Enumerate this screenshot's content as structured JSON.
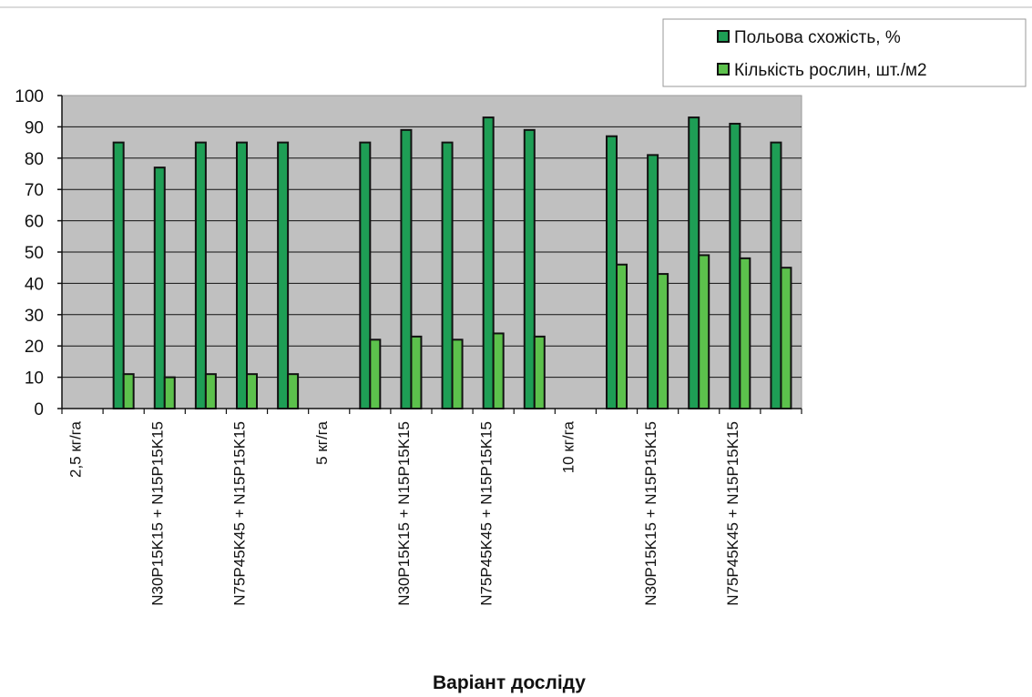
{
  "chart_data": {
    "type": "bar",
    "xlabel": "Варіант досліду",
    "ylabel": "",
    "ylim": [
      0,
      100
    ],
    "yticks": [
      0,
      10,
      20,
      30,
      40,
      50,
      60,
      70,
      80,
      90,
      100
    ],
    "grid": true,
    "legend_position": "top-right",
    "categories": [
      "2,5 кг/га",
      "",
      "N30P15K15 + N15P15K15",
      "",
      "N75P45K45 + N15P15K15",
      "",
      "5 кг/га",
      "",
      "N30P15K15 + N15P15K15",
      "",
      "N75P45K45 + N15P15K15",
      "",
      "10 кг/га",
      "",
      "N30P15K15 + N15P15K15",
      "",
      "N75P45K45 + N15P15K15",
      ""
    ],
    "series": [
      {
        "name": "Польова схожість, %",
        "color": "#1e9e55",
        "values": [
          null,
          85,
          77,
          85,
          85,
          85,
          null,
          85,
          89,
          85,
          93,
          89,
          null,
          87,
          81,
          93,
          91,
          85
        ]
      },
      {
        "name": "Кількість рослин, шт./м2",
        "color": "#5cc14c",
        "values": [
          null,
          11,
          10,
          11,
          11,
          11,
          null,
          22,
          23,
          22,
          24,
          23,
          null,
          46,
          43,
          49,
          48,
          45
        ]
      }
    ]
  }
}
